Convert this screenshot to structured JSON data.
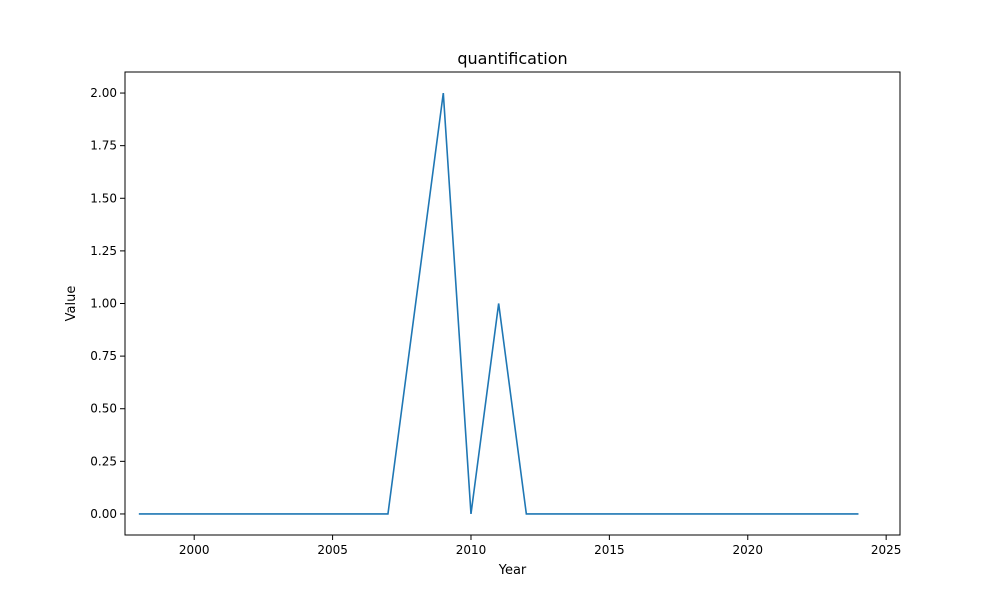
{
  "chart_data": {
    "type": "line",
    "title": "quantification",
    "xlabel": "Year",
    "ylabel": "Value",
    "xlim": [
      1997.5,
      2025.5
    ],
    "ylim": [
      -0.1,
      2.1
    ],
    "x_ticks": [
      2000,
      2005,
      2010,
      2015,
      2020,
      2025
    ],
    "y_ticks": [
      0.0,
      0.25,
      0.5,
      0.75,
      1.0,
      1.25,
      1.5,
      1.75,
      2.0
    ],
    "y_tick_labels": [
      "0.00",
      "0.25",
      "0.50",
      "0.75",
      "1.00",
      "1.25",
      "1.50",
      "1.75",
      "2.00"
    ],
    "grid": false,
    "line_color": "#1f77b4",
    "series": [
      {
        "x": [
          1998,
          1999,
          2000,
          2001,
          2002,
          2003,
          2004,
          2005,
          2006,
          2007,
          2008,
          2009,
          2010,
          2011,
          2012,
          2013,
          2014,
          2015,
          2016,
          2017,
          2018,
          2019,
          2020,
          2021,
          2022,
          2023,
          2024
        ],
        "values": [
          0,
          0,
          0,
          0,
          0,
          0,
          0,
          0,
          0,
          0,
          1,
          2,
          0,
          1,
          0,
          0,
          0,
          0,
          0,
          0,
          0,
          0,
          0,
          0,
          0,
          0,
          0
        ]
      }
    ]
  }
}
